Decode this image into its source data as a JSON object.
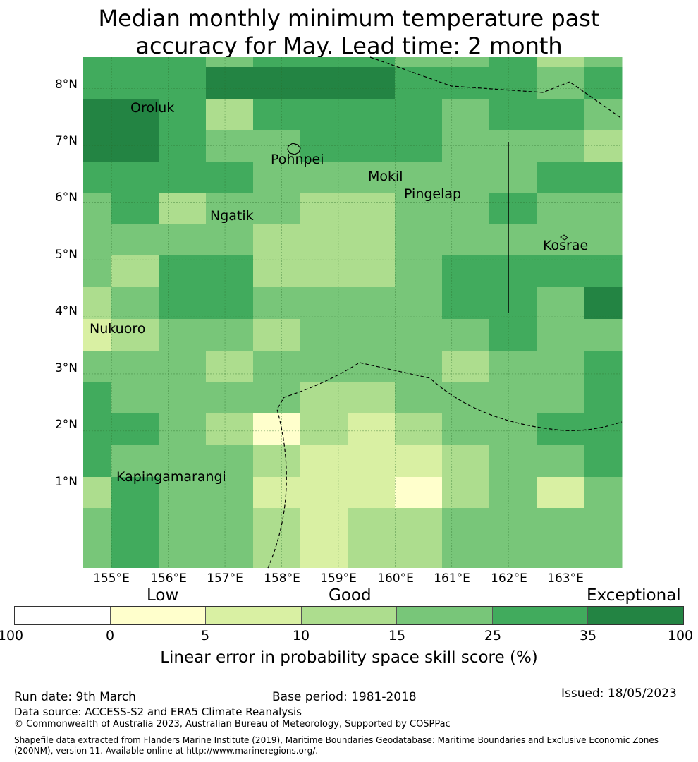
{
  "title": {
    "line1": "Median monthly minimum temperature past",
    "line2": "accuracy for May. Lead time: 2 month"
  },
  "map": {
    "lat_labels": [
      "8°N",
      "7°N",
      "6°N",
      "5°N",
      "4°N",
      "3°N",
      "2°N",
      "1°N"
    ],
    "lon_labels": [
      "155°E",
      "156°E",
      "157°E",
      "158°E",
      "159°E",
      "160°E",
      "161°E",
      "162°E",
      "163°E"
    ],
    "places": [
      "Oroluk",
      "Pohnpei",
      "Mokil",
      "Pingelap",
      "Ngatik",
      "Kosrae",
      "Nukuoro",
      "Kapingamarangi"
    ],
    "grid": {
      "rows": 16,
      "cols": 12,
      "lat_range": [
        -0.4,
        8.55
      ],
      "lon_range": [
        154.5,
        164.0
      ],
      "classes": [
        [
          5,
          5,
          5,
          4,
          5,
          5,
          5,
          4,
          4,
          5,
          3,
          4
        ],
        [
          5,
          5,
          5,
          6,
          6,
          6,
          6,
          5,
          5,
          5,
          4,
          5
        ],
        [
          6,
          6,
          5,
          3,
          5,
          5,
          5,
          5,
          4,
          5,
          5,
          4
        ],
        [
          6,
          6,
          5,
          4,
          4,
          5,
          5,
          5,
          4,
          4,
          4,
          3
        ],
        [
          5,
          5,
          5,
          5,
          4,
          4,
          4,
          4,
          4,
          4,
          5,
          5
        ],
        [
          4,
          5,
          3,
          4,
          4,
          3,
          3,
          4,
          4,
          5,
          4,
          4
        ],
        [
          4,
          4,
          4,
          4,
          3,
          3,
          3,
          4,
          4,
          4,
          4,
          4
        ],
        [
          4,
          3,
          5,
          5,
          3,
          3,
          3,
          4,
          5,
          5,
          5,
          5
        ],
        [
          3,
          4,
          5,
          5,
          4,
          4,
          4,
          4,
          5,
          5,
          4,
          6
        ],
        [
          2,
          3,
          4,
          4,
          3,
          4,
          4,
          4,
          4,
          5,
          4,
          4
        ],
        [
          4,
          4,
          4,
          3,
          4,
          4,
          4,
          4,
          3,
          4,
          4,
          5
        ],
        [
          5,
          4,
          4,
          4,
          4,
          3,
          3,
          4,
          4,
          4,
          4,
          5
        ],
        [
          5,
          5,
          4,
          3,
          1,
          3,
          2,
          3,
          4,
          4,
          5,
          5
        ],
        [
          5,
          4,
          4,
          4,
          3,
          2,
          2,
          2,
          3,
          4,
          4,
          5
        ],
        [
          3,
          5,
          4,
          4,
          2,
          2,
          2,
          1,
          3,
          4,
          2,
          4
        ],
        [
          4,
          5,
          4,
          4,
          3,
          2,
          3,
          3,
          4,
          4,
          4,
          4
        ]
      ]
    }
  },
  "colorbar": {
    "categories": [
      "Low",
      "Good",
      "Exceptional"
    ],
    "ticks": [
      "-100",
      "0",
      "5",
      "10",
      "15",
      "25",
      "35",
      "100"
    ],
    "colors": [
      "#ffffff",
      "#ffffcc",
      "#d9f0a3",
      "#addd8e",
      "#78c679",
      "#41ab5d",
      "#238443"
    ],
    "label": "Linear error in probability space skill score (%)"
  },
  "footer": {
    "run_date": "Run date: 9th March",
    "base_period": "Base period: 1981-2018",
    "issued": "Issued: 18/05/2023",
    "data_source": "Data source: ACCESS-S2 and ERA5 Climate Reanalysis",
    "copyright": "© Commonwealth of Australia 2023, Australian Bureau of Meteorology, Supported by COSPPac",
    "shapefile": "Shapefile data extracted from Flanders Marine Institute (2019), Maritime Boundaries Geodatabase: Maritime Boundaries and Exclusive Economic Zones (200NM), version 11. Available online at http://www.marineregions.org/."
  }
}
